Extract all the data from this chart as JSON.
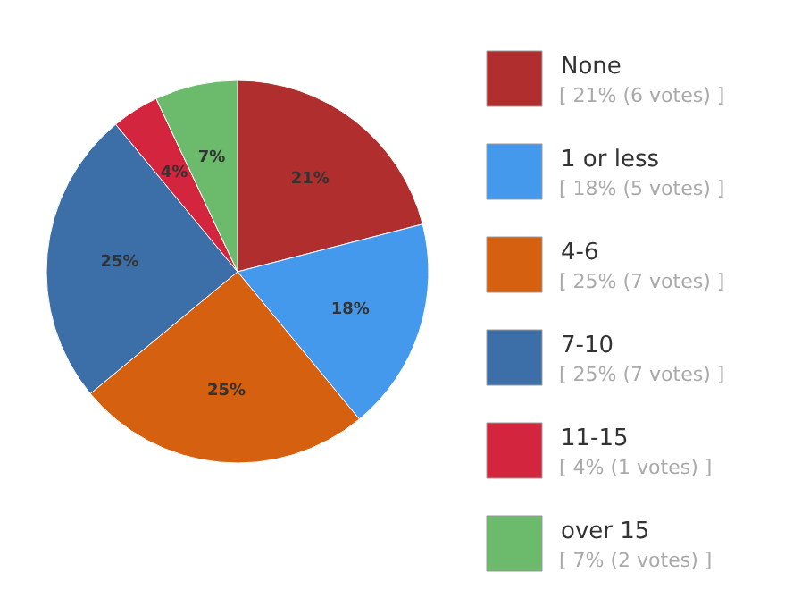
{
  "chart_data": {
    "type": "pie",
    "categories": [
      "None",
      "1 or less",
      "4-6",
      "7-10",
      "11-15",
      "over 15"
    ],
    "values": [
      21,
      18,
      25,
      25,
      4,
      7
    ],
    "colors": [
      "#b02e2e",
      "#4499ec",
      "#d5600f",
      "#3c6ea8",
      "#d4253f",
      "#6cba6c"
    ],
    "value_labels": [
      "21%",
      "18%",
      "25%",
      "25%",
      "4%",
      "7%"
    ],
    "annotations": [
      "[ 21% (6 votes) ]",
      "[ 18% (5 votes) ]",
      "[ 25% (7 votes) ]",
      "[ 25% (7 votes) ]",
      "[ 4% (1 votes) ]",
      "[ 7% (2 votes) ]"
    ],
    "legend": "right"
  }
}
